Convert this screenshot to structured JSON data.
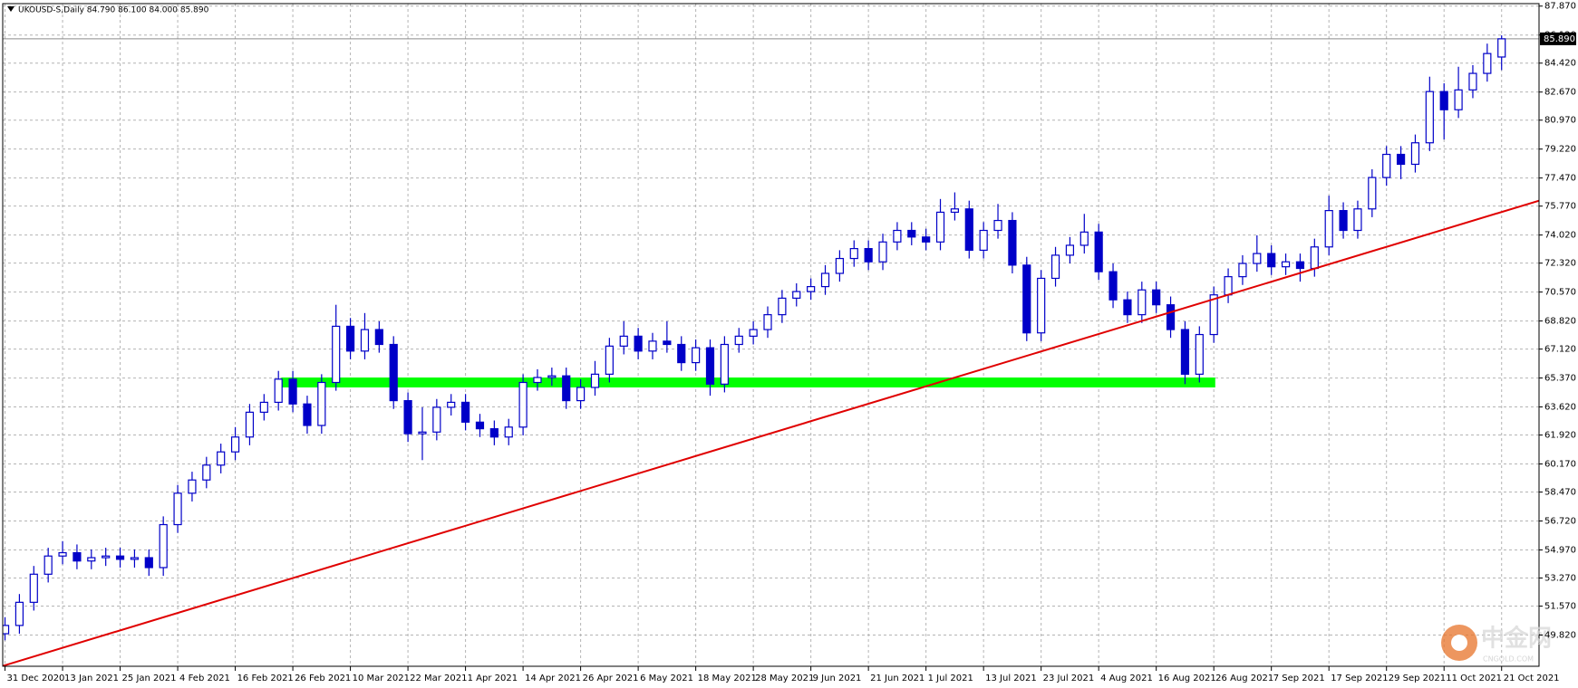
{
  "chart_data": {
    "type": "candlestick",
    "title": "UKOUSD-S,Daily  84.790 86.100 84.000 85.890",
    "categories": [
      "31 Dec 2020",
      null,
      null,
      null,
      "13 Jan 2021",
      null,
      null,
      null,
      "25 Jan 2021",
      null,
      null,
      null,
      "4 Feb 2021",
      null,
      null,
      null,
      "16 Feb 2021",
      null,
      null,
      null,
      "26 Feb 2021",
      null,
      null,
      null,
      "10 Mar 2021",
      null,
      null,
      null,
      "22 Mar 2021",
      null,
      null,
      null,
      "1 Apr 2021",
      null,
      null,
      null,
      "14 Apr 2021",
      null,
      null,
      null,
      "26 Apr 2021",
      null,
      null,
      null,
      "6 May 2021",
      null,
      null,
      null,
      "18 May 2021",
      null,
      null,
      null,
      "28 May 2021",
      null,
      null,
      null,
      "9 Jun 2021",
      null,
      null,
      null,
      "21 Jun 2021",
      null,
      null,
      null,
      "1 Jul 2021",
      null,
      null,
      null,
      "13 Jul 2021",
      null,
      null,
      null,
      "23 Jul 2021",
      null,
      null,
      null,
      "4 Aug 2021",
      null,
      null,
      null,
      "16 Aug 2021",
      null,
      null,
      null,
      "26 Aug 2021",
      null,
      null,
      null,
      "7 Sep 2021",
      null,
      null,
      null,
      "17 Sep 2021",
      null,
      null,
      null,
      "29 Sep 2021",
      null,
      null,
      null,
      "11 Oct 2021",
      null,
      null,
      null,
      "21 Oct 2021"
    ],
    "open": [
      49.9,
      50.4,
      51.8,
      53.5,
      54.6,
      54.8,
      54.3,
      54.5,
      54.6,
      54.4,
      54.5,
      53.9,
      56.5,
      58.4,
      59.2,
      60.1,
      60.9,
      61.8,
      63.3,
      63.9,
      65.3,
      63.8,
      62.5,
      65.1,
      68.5,
      67.0,
      68.3,
      67.4,
      64.0,
      62.0,
      62.1,
      63.6,
      63.9,
      62.7,
      62.3,
      61.8,
      62.4,
      65.1,
      65.4,
      65.5,
      64.0,
      64.8,
      65.6,
      67.3,
      67.9,
      67.0,
      67.6,
      67.4,
      66.3,
      67.2,
      65.0,
      67.4,
      67.9,
      68.3,
      69.2,
      70.2,
      70.6,
      70.9,
      71.7,
      72.6,
      73.2,
      72.4,
      73.6,
      74.3,
      73.9,
      73.6,
      75.4,
      75.6,
      73.1,
      74.3,
      74.9,
      72.2,
      68.1,
      71.4,
      72.8,
      73.4,
      74.2,
      71.8,
      70.1,
      69.2,
      70.7,
      69.8,
      68.3,
      65.6,
      68.0,
      70.4,
      71.5,
      72.3,
      72.9,
      72.1,
      72.4,
      72.0,
      73.3,
      75.5,
      74.3,
      75.6,
      77.5,
      78.9,
      78.3,
      79.6,
      82.7,
      81.6,
      82.8,
      83.8,
      84.79
    ],
    "high": [
      50.9,
      52.3,
      54.0,
      55.1,
      55.5,
      55.3,
      55.0,
      55.1,
      55.1,
      55.0,
      55.0,
      57.0,
      58.9,
      59.7,
      60.6,
      61.4,
      62.4,
      63.8,
      64.4,
      65.8,
      65.8,
      64.3,
      65.6,
      69.8,
      69.0,
      69.3,
      68.8,
      67.9,
      64.5,
      63.6,
      64.1,
      64.4,
      64.4,
      63.2,
      62.8,
      62.9,
      65.6,
      65.9,
      66.0,
      66.0,
      65.3,
      66.4,
      67.8,
      68.8,
      68.4,
      68.1,
      68.8,
      67.9,
      67.7,
      67.7,
      67.9,
      68.4,
      68.8,
      69.7,
      70.7,
      71.1,
      71.4,
      72.2,
      73.1,
      73.7,
      73.7,
      74.1,
      74.8,
      74.8,
      74.4,
      76.2,
      76.6,
      76.1,
      74.8,
      75.9,
      75.4,
      72.7,
      71.9,
      73.3,
      73.9,
      75.3,
      74.7,
      72.3,
      70.6,
      71.2,
      71.2,
      70.3,
      68.8,
      68.5,
      70.9,
      72.0,
      72.8,
      74.0,
      73.4,
      72.9,
      72.9,
      73.8,
      76.4,
      76.0,
      76.1,
      78.0,
      79.4,
      79.4,
      80.1,
      83.6,
      83.2,
      84.2,
      84.3,
      85.6,
      86.1
    ],
    "low": [
      49.5,
      49.9,
      51.3,
      53.0,
      54.1,
      53.8,
      53.8,
      54.0,
      53.9,
      53.9,
      53.4,
      53.4,
      56.0,
      57.9,
      58.7,
      59.6,
      60.4,
      61.3,
      62.8,
      63.4,
      63.3,
      62.0,
      62.0,
      64.6,
      66.5,
      66.5,
      66.9,
      63.5,
      61.5,
      60.4,
      61.6,
      63.1,
      62.2,
      61.8,
      61.3,
      61.3,
      61.9,
      64.6,
      64.9,
      63.5,
      63.5,
      64.3,
      65.1,
      66.8,
      66.5,
      66.5,
      66.9,
      65.8,
      65.8,
      64.3,
      64.5,
      66.9,
      67.4,
      67.8,
      68.7,
      69.7,
      70.1,
      70.4,
      71.2,
      72.1,
      71.9,
      71.9,
      73.1,
      73.4,
      73.1,
      73.1,
      74.9,
      72.6,
      72.6,
      73.8,
      71.7,
      67.6,
      67.6,
      70.9,
      72.3,
      72.9,
      71.3,
      69.6,
      68.7,
      68.7,
      69.3,
      67.8,
      65.0,
      65.1,
      67.5,
      69.9,
      71.0,
      71.8,
      71.6,
      71.6,
      71.2,
      71.5,
      72.8,
      73.8,
      73.8,
      75.1,
      77.0,
      77.4,
      77.8,
      79.1,
      79.8,
      81.1,
      82.3,
      83.3,
      84.0
    ],
    "close": [
      50.4,
      51.8,
      53.5,
      54.6,
      54.8,
      54.3,
      54.5,
      54.6,
      54.4,
      54.5,
      53.9,
      56.5,
      58.4,
      59.2,
      60.1,
      60.9,
      61.8,
      63.3,
      63.9,
      65.3,
      63.8,
      62.5,
      65.1,
      68.5,
      67.0,
      68.3,
      67.4,
      64.0,
      62.0,
      62.1,
      63.6,
      63.9,
      62.7,
      62.3,
      61.8,
      62.4,
      65.1,
      65.4,
      65.5,
      64.0,
      64.8,
      65.6,
      67.3,
      67.9,
      67.0,
      67.6,
      67.4,
      66.3,
      67.2,
      65.0,
      67.4,
      67.9,
      68.3,
      69.2,
      70.2,
      70.6,
      70.9,
      71.7,
      72.6,
      73.2,
      72.4,
      73.6,
      74.3,
      73.9,
      73.6,
      75.4,
      75.6,
      73.1,
      74.3,
      74.9,
      72.2,
      68.1,
      71.4,
      72.8,
      73.4,
      74.2,
      71.8,
      70.1,
      69.2,
      70.7,
      69.8,
      68.3,
      65.6,
      68.0,
      70.4,
      71.5,
      72.3,
      72.9,
      72.1,
      72.4,
      72.0,
      73.3,
      75.5,
      74.3,
      75.6,
      77.5,
      78.9,
      78.3,
      79.6,
      82.7,
      81.6,
      82.8,
      83.8,
      85.0,
      85.89
    ],
    "color": "#0000c8",
    "bull_fill": "#ffffff",
    "xlim": [
      -0.16,
      106.6
    ],
    "ylim": [
      47.93,
      88.02
    ],
    "yticks": [
      {
        "value": 49.82,
        "label": "49.820"
      },
      {
        "value": 51.57,
        "label": "51.570"
      },
      {
        "value": 53.27,
        "label": "53.270"
      },
      {
        "value": 54.97,
        "label": "54.970"
      },
      {
        "value": 56.72,
        "label": "56.720"
      },
      {
        "value": 58.47,
        "label": "58.470"
      },
      {
        "value": 60.17,
        "label": "60.170"
      },
      {
        "value": 61.92,
        "label": "61.920"
      },
      {
        "value": 63.62,
        "label": "63.620"
      },
      {
        "value": 65.37,
        "label": "65.370"
      },
      {
        "value": 67.12,
        "label": "67.120"
      },
      {
        "value": 68.82,
        "label": "68.820"
      },
      {
        "value": 70.57,
        "label": "70.570"
      },
      {
        "value": 72.32,
        "label": "72.320"
      },
      {
        "value": 74.02,
        "label": "74.020"
      },
      {
        "value": 75.77,
        "label": "75.770"
      },
      {
        "value": 77.47,
        "label": "77.470"
      },
      {
        "value": 79.22,
        "label": "79.220"
      },
      {
        "value": 80.97,
        "label": "80.970"
      },
      {
        "value": 82.67,
        "label": "82.670"
      },
      {
        "value": 84.42,
        "label": "84.420"
      },
      {
        "value": 86.12,
        "label": "86.120"
      },
      {
        "value": 87.87,
        "label": "87.870"
      }
    ],
    "grid": true,
    "last": {
      "value": 85.89,
      "label": "85.890"
    },
    "trendline": {
      "color": "#e00000",
      "x": [
        -0.35,
        106.6
      ],
      "y": [
        47.9,
        76.1
      ]
    },
    "zone": {
      "color": "#00ff00",
      "x": [
        19.2,
        84.1
      ],
      "y": [
        64.8,
        65.4
      ]
    },
    "watermark": {
      "name": "中金网",
      "site": "CNGOLD.COM"
    }
  }
}
